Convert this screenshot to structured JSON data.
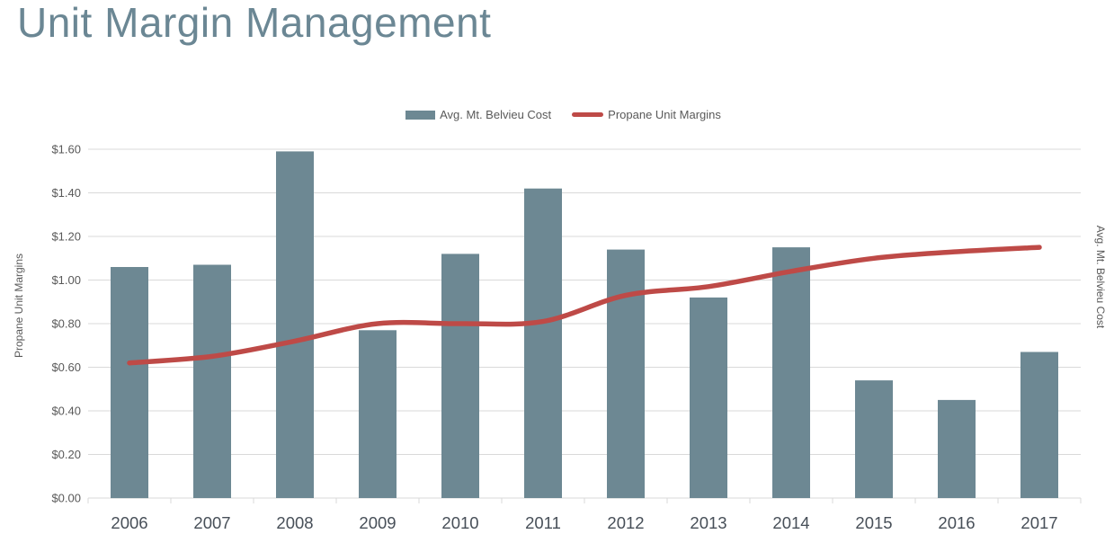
{
  "chart_data": {
    "type": "combo",
    "title": "Unit Margin Management",
    "categories": [
      "2006",
      "2007",
      "2008",
      "2009",
      "2010",
      "2011",
      "2012",
      "2013",
      "2014",
      "2015",
      "2016",
      "2017"
    ],
    "series": [
      {
        "name": "Avg. Mt. Belvieu Cost",
        "type": "bar",
        "color": "#6d8893",
        "values": [
          1.06,
          1.07,
          1.59,
          0.77,
          1.12,
          1.42,
          1.14,
          0.92,
          1.15,
          0.54,
          0.45,
          0.67
        ]
      },
      {
        "name": "Propane Unit Margins",
        "type": "line",
        "smooth": true,
        "color": "#be4a47",
        "values": [
          0.62,
          0.65,
          0.72,
          0.8,
          0.8,
          0.81,
          0.93,
          0.97,
          1.04,
          1.1,
          1.13,
          1.15
        ]
      }
    ],
    "ylabel_left": "Propane Unit Margins",
    "ylabel_right": "Avg. Mt. Belvieu Cost",
    "xlabel": "",
    "ylim": [
      0,
      1.6
    ],
    "y_ticks": [
      "$0.00",
      "$0.20",
      "$0.40",
      "$0.60",
      "$0.80",
      "$1.00",
      "$1.20",
      "$1.40",
      "$1.60"
    ],
    "grid": true,
    "legend_position": "top-center"
  },
  "colors": {
    "title": "#6b8794",
    "grid": "#d9d9d9",
    "axis_text": "#595959",
    "x_label": "#474f58"
  }
}
